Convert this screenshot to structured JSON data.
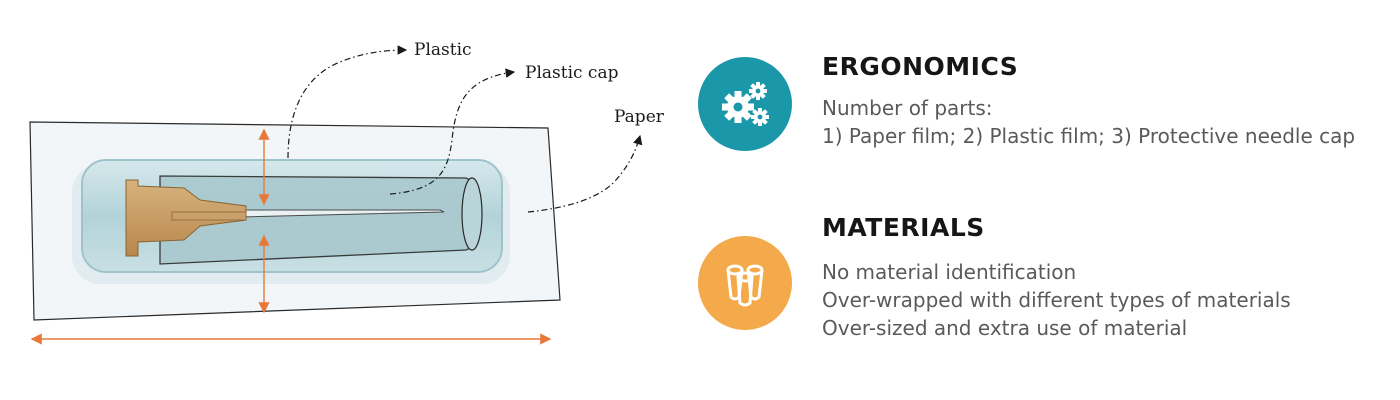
{
  "diagram": {
    "labels": {
      "plastic": "Plastic",
      "plastic_cap": "Plastic cap",
      "paper": "Paper"
    }
  },
  "sections": {
    "ergonomics": {
      "title": "ERGONOMICS",
      "icon": "gears-icon",
      "icon_color": "#1a97a8",
      "lines": [
        "Number of parts:",
        "1) Paper film; 2) Plastic film;  3) Protective needle cap"
      ]
    },
    "materials": {
      "title": "MATERIALS",
      "icon": "material-rolls-icon",
      "icon_color": "#f4a94a",
      "lines": [
        "No material identification",
        "Over-wrapped with different types of materials",
        "Over-sized and extra use of material"
      ]
    }
  },
  "colors": {
    "dimension_arrows": "#e8793a",
    "needle_hub": "#c9a06a",
    "blister": "#b7d7dd"
  }
}
